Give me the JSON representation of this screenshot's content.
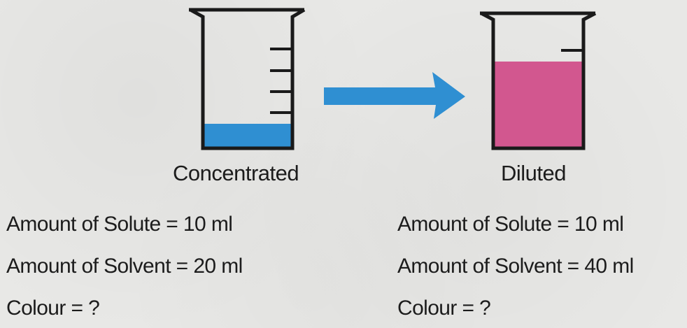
{
  "colors": {
    "concentrated_liquid": "#2f8fd2",
    "diluted_liquid": "#d2578f",
    "arrow": "#2f8fd2",
    "beaker_outline": "#1a1a1a"
  },
  "concentrated": {
    "caption": "Concentrated",
    "solute": "Amount of Solute = 10 ml",
    "solvent": "Amount of Solvent = 20 ml",
    "colour": "Colour = ?"
  },
  "diluted": {
    "caption": "Diluted",
    "solute": "Amount of Solute = 10 ml",
    "solvent": "Amount of Solvent = 40 ml",
    "colour": "Colour = ?"
  }
}
